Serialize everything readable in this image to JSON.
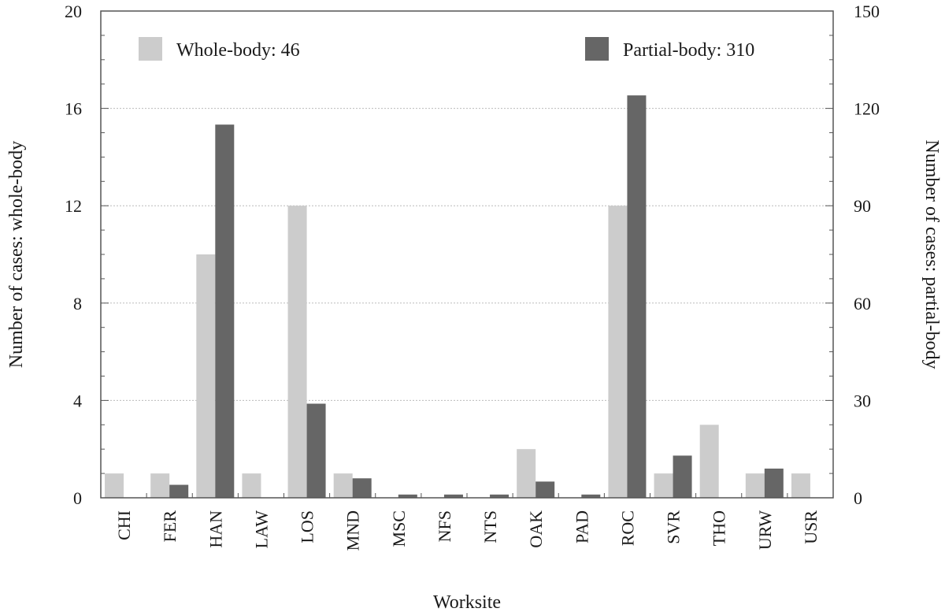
{
  "chart_data": {
    "type": "bar",
    "xlabel": "Worksite",
    "ylabel": "Number of cases: whole-body",
    "y2label": "Number of cases: partial-body",
    "categories": [
      "CHI",
      "FER",
      "HAN",
      "LAW",
      "LOS",
      "MND",
      "MSC",
      "NFS",
      "NTS",
      "OAK",
      "PAD",
      "ROC",
      "SVR",
      "THO",
      "URW",
      "USR"
    ],
    "ylim": [
      0,
      20
    ],
    "y2lim": [
      0,
      150
    ],
    "yticks": [
      0,
      4,
      8,
      12,
      16,
      20
    ],
    "y2ticks": [
      0,
      30,
      60,
      90,
      120,
      150
    ],
    "grid": "horizontal dotted",
    "legend_placement": "top",
    "series": [
      {
        "name": "Whole-body: 46",
        "axis": "left",
        "color": "#cccccc",
        "values": [
          1,
          1,
          10,
          1,
          12,
          1,
          0,
          0,
          0,
          2,
          0,
          12,
          1,
          3,
          1,
          1
        ]
      },
      {
        "name": "Partial-body: 310",
        "axis": "right",
        "color": "#666666",
        "values": [
          0,
          4,
          115,
          0,
          29,
          6,
          1,
          1,
          1,
          5,
          1,
          124,
          13,
          0,
          9,
          0
        ]
      }
    ]
  }
}
